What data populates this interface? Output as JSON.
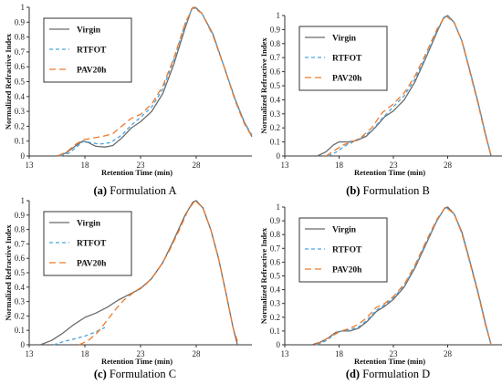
{
  "colors": {
    "virgin": "#6b6b6b",
    "rtfot": "#4aa3df",
    "pav20h": "#ec7a2b",
    "axis": "#333333"
  },
  "line_styles": {
    "virgin": "solid",
    "rtfot": "dashed",
    "pav20h": "long-dashed"
  },
  "chart_data": [
    {
      "type": "line",
      "caption_label": "(a)",
      "caption_text": " Formulation A",
      "xlabel": "Retention Time (min)",
      "ylabel": "Normalized Refractive Index",
      "xlim": [
        13,
        33
      ],
      "ylim": [
        0,
        1
      ],
      "xticks": [
        "13",
        "18",
        "23",
        "28"
      ],
      "yticks": [
        "0",
        "0.1",
        "0.2",
        "0.3",
        "0.4",
        "0.5",
        "0.6",
        "0.7",
        "0.8",
        "0.9",
        "1"
      ],
      "legend": "top-left",
      "series": [
        {
          "name": "Virgin",
          "points": [
            [
              15.5,
              0
            ],
            [
              16.3,
              0.02
            ],
            [
              17.2,
              0.07
            ],
            [
              17.8,
              0.1
            ],
            [
              18.3,
              0.09
            ],
            [
              19,
              0.065
            ],
            [
              19.8,
              0.06
            ],
            [
              20.5,
              0.07
            ],
            [
              21.3,
              0.12
            ],
            [
              22.2,
              0.19
            ],
            [
              23,
              0.23
            ],
            [
              24,
              0.3
            ],
            [
              25,
              0.42
            ],
            [
              26,
              0.62
            ],
            [
              27,
              0.86
            ],
            [
              27.6,
              0.99
            ],
            [
              27.9,
              1
            ],
            [
              28.5,
              0.96
            ],
            [
              29.5,
              0.82
            ],
            [
              30.5,
              0.6
            ],
            [
              31.5,
              0.38
            ],
            [
              32.3,
              0.23
            ],
            [
              33,
              0.13
            ]
          ]
        },
        {
          "name": "RTFOT",
          "points": [
            [
              15.8,
              0
            ],
            [
              16.6,
              0.02
            ],
            [
              17.4,
              0.07
            ],
            [
              17.9,
              0.1
            ],
            [
              18.5,
              0.09
            ],
            [
              19.3,
              0.08
            ],
            [
              20.3,
              0.09
            ],
            [
              21.3,
              0.14
            ],
            [
              22.2,
              0.21
            ],
            [
              23,
              0.26
            ],
            [
              24,
              0.33
            ],
            [
              25,
              0.45
            ],
            [
              26,
              0.65
            ],
            [
              27,
              0.89
            ],
            [
              27.7,
              1
            ],
            [
              28.5,
              0.96
            ],
            [
              29.5,
              0.82
            ],
            [
              30.5,
              0.6
            ],
            [
              31.5,
              0.38
            ],
            [
              32.3,
              0.23
            ],
            [
              33,
              0.14
            ]
          ]
        },
        {
          "name": "PAV20h",
          "points": [
            [
              15.6,
              0
            ],
            [
              16.4,
              0.03
            ],
            [
              17.2,
              0.08
            ],
            [
              17.9,
              0.11
            ],
            [
              18.7,
              0.12
            ],
            [
              19.5,
              0.13
            ],
            [
              20.5,
              0.15
            ],
            [
              21.3,
              0.2
            ],
            [
              22.1,
              0.25
            ],
            [
              23,
              0.28
            ],
            [
              24,
              0.35
            ],
            [
              25,
              0.47
            ],
            [
              26,
              0.66
            ],
            [
              27,
              0.89
            ],
            [
              27.7,
              1
            ],
            [
              28.5,
              0.96
            ],
            [
              29.5,
              0.81
            ],
            [
              30.5,
              0.6
            ],
            [
              31.5,
              0.37
            ],
            [
              32.3,
              0.22
            ],
            [
              33,
              0.13
            ]
          ]
        }
      ]
    },
    {
      "type": "line",
      "caption_label": "(b)",
      "caption_text": " Formulation B",
      "xlabel": "Retention Time (min)",
      "ylabel": "Normalized Refractive Index",
      "xlim": [
        13,
        33
      ],
      "ylim": [
        0,
        1
      ],
      "xticks": [
        "13",
        "18",
        "23",
        "28"
      ],
      "yticks": [
        "0",
        "0.1",
        "0.2",
        "0.3",
        "0.4",
        "0.5",
        "0.6",
        "0.7",
        "0.8",
        "0.9",
        "1"
      ],
      "legend": "top-left",
      "series": [
        {
          "name": "Virgin",
          "points": [
            [
              16,
              0
            ],
            [
              16.8,
              0.03
            ],
            [
              17.5,
              0.08
            ],
            [
              18,
              0.1
            ],
            [
              18.8,
              0.1
            ],
            [
              19.6,
              0.11
            ],
            [
              20.5,
              0.14
            ],
            [
              21.3,
              0.2
            ],
            [
              22.2,
              0.28
            ],
            [
              23,
              0.32
            ],
            [
              24,
              0.4
            ],
            [
              25,
              0.53
            ],
            [
              26,
              0.7
            ],
            [
              27,
              0.88
            ],
            [
              27.6,
              0.98
            ],
            [
              28,
              1
            ],
            [
              28.6,
              0.95
            ],
            [
              29.3,
              0.82
            ],
            [
              30,
              0.62
            ],
            [
              30.8,
              0.38
            ],
            [
              31.5,
              0.15
            ],
            [
              32,
              0
            ]
          ]
        },
        {
          "name": "RTFOT",
          "points": [
            [
              17,
              0
            ],
            [
              17.8,
              0.03
            ],
            [
              18.5,
              0.07
            ],
            [
              19.3,
              0.1
            ],
            [
              20,
              0.13
            ],
            [
              21,
              0.18
            ],
            [
              22,
              0.27
            ],
            [
              23,
              0.35
            ],
            [
              24,
              0.43
            ],
            [
              25,
              0.55
            ],
            [
              26,
              0.71
            ],
            [
              27,
              0.89
            ],
            [
              27.7,
              0.99
            ],
            [
              28,
              1
            ],
            [
              28.6,
              0.95
            ],
            [
              29.3,
              0.82
            ],
            [
              30,
              0.62
            ],
            [
              30.8,
              0.38
            ],
            [
              31.5,
              0.15
            ],
            [
              32,
              0
            ]
          ]
        },
        {
          "name": "PAV20h",
          "points": [
            [
              16.8,
              0
            ],
            [
              17.6,
              0.04
            ],
            [
              18.4,
              0.08
            ],
            [
              19.2,
              0.1
            ],
            [
              20,
              0.13
            ],
            [
              21,
              0.2
            ],
            [
              22,
              0.31
            ],
            [
              23,
              0.37
            ],
            [
              24,
              0.45
            ],
            [
              25,
              0.57
            ],
            [
              26,
              0.73
            ],
            [
              27,
              0.9
            ],
            [
              27.8,
              1
            ],
            [
              28.6,
              0.95
            ],
            [
              29.3,
              0.82
            ],
            [
              30,
              0.61
            ],
            [
              30.8,
              0.37
            ],
            [
              31.5,
              0.14
            ],
            [
              32,
              0
            ]
          ]
        }
      ]
    },
    {
      "type": "line",
      "caption_label": "(c)",
      "caption_text": " Formulation C",
      "xlabel": "Retention Time (min)",
      "ylabel": "Normalized Refractive Index",
      "xlim": [
        13,
        33
      ],
      "ylim": [
        0,
        1
      ],
      "xticks": [
        "13",
        "18",
        "23",
        "28"
      ],
      "yticks": [
        "0",
        "0.1",
        "0.2",
        "0.3",
        "0.4",
        "0.5",
        "0.6",
        "0.7",
        "0.8",
        "0.9",
        "1"
      ],
      "legend": "top-left",
      "series": [
        {
          "name": "Virgin",
          "points": [
            [
              14,
              0
            ],
            [
              15,
              0.03
            ],
            [
              16,
              0.08
            ],
            [
              17,
              0.14
            ],
            [
              18,
              0.19
            ],
            [
              19,
              0.22
            ],
            [
              20,
              0.26
            ],
            [
              21,
              0.31
            ],
            [
              22,
              0.35
            ],
            [
              23,
              0.39
            ],
            [
              24,
              0.46
            ],
            [
              25,
              0.57
            ],
            [
              26,
              0.73
            ],
            [
              27,
              0.9
            ],
            [
              27.7,
              0.99
            ],
            [
              28,
              1
            ],
            [
              28.6,
              0.95
            ],
            [
              29.3,
              0.8
            ],
            [
              30,
              0.6
            ],
            [
              30.7,
              0.35
            ],
            [
              31.3,
              0.12
            ],
            [
              31.7,
              0
            ]
          ]
        },
        {
          "name": "RTFOT",
          "points": [
            [
              15.2,
              0
            ],
            [
              16,
              0.02
            ],
            [
              17,
              0.04
            ],
            [
              18,
              0.06
            ],
            [
              19,
              0.09
            ],
            [
              19.8,
              0.12
            ]
          ]
        },
        {
          "name": "PAV20h",
          "points": [
            [
              17.5,
              0
            ],
            [
              18.3,
              0.03
            ],
            [
              19.2,
              0.09
            ],
            [
              20,
              0.17
            ],
            [
              20.8,
              0.25
            ],
            [
              21.5,
              0.31
            ],
            [
              22.5,
              0.37
            ],
            [
              23.5,
              0.42
            ],
            [
              24.5,
              0.51
            ],
            [
              25.5,
              0.64
            ],
            [
              26.5,
              0.8
            ],
            [
              27.3,
              0.94
            ],
            [
              27.9,
              1
            ],
            [
              28.6,
              0.95
            ],
            [
              29.3,
              0.8
            ],
            [
              30,
              0.6
            ],
            [
              30.7,
              0.35
            ],
            [
              31.3,
              0.12
            ],
            [
              31.8,
              0
            ]
          ]
        }
      ]
    },
    {
      "type": "line",
      "caption_label": "(d)",
      "caption_text": " Formulation D",
      "xlabel": "Retention Time (min)",
      "ylabel": "Normalized Refractive Index",
      "xlim": [
        13,
        33
      ],
      "ylim": [
        0,
        1
      ],
      "xticks": [
        "13",
        "18",
        "23",
        "28"
      ],
      "yticks": [
        "0",
        "0.1",
        "0.2",
        "0.3",
        "0.4",
        "0.5",
        "0.6",
        "0.7",
        "0.8",
        "0.9",
        "1"
      ],
      "legend": "top-left",
      "series": [
        {
          "name": "Virgin",
          "points": [
            [
              15.5,
              0
            ],
            [
              16.3,
              0.02
            ],
            [
              17,
              0.05
            ],
            [
              17.7,
              0.09
            ],
            [
              18.3,
              0.1
            ],
            [
              19,
              0.1
            ],
            [
              19.8,
              0.12
            ],
            [
              20.6,
              0.17
            ],
            [
              21.4,
              0.24
            ],
            [
              22.2,
              0.28
            ],
            [
              23,
              0.33
            ],
            [
              24,
              0.42
            ],
            [
              25,
              0.56
            ],
            [
              26,
              0.73
            ],
            [
              27,
              0.9
            ],
            [
              27.7,
              0.99
            ],
            [
              28,
              1
            ],
            [
              28.6,
              0.95
            ],
            [
              29.3,
              0.82
            ],
            [
              30,
              0.62
            ],
            [
              30.8,
              0.38
            ],
            [
              31.5,
              0.15
            ],
            [
              32,
              0
            ]
          ]
        },
        {
          "name": "RTFOT",
          "points": [
            [
              16,
              0
            ],
            [
              16.8,
              0.03
            ],
            [
              17.5,
              0.07
            ],
            [
              18.2,
              0.1
            ],
            [
              19,
              0.11
            ],
            [
              19.8,
              0.13
            ],
            [
              20.6,
              0.18
            ],
            [
              21.4,
              0.25
            ],
            [
              22.2,
              0.29
            ],
            [
              23,
              0.34
            ],
            [
              24,
              0.43
            ],
            [
              25,
              0.57
            ],
            [
              26,
              0.74
            ],
            [
              27,
              0.9
            ],
            [
              27.8,
              1
            ],
            [
              28.6,
              0.95
            ],
            [
              29.3,
              0.81
            ],
            [
              30,
              0.61
            ],
            [
              30.8,
              0.37
            ],
            [
              31.5,
              0.14
            ],
            [
              32,
              0
            ]
          ]
        },
        {
          "name": "PAV20h",
          "points": [
            [
              15.8,
              0
            ],
            [
              16.6,
              0.03
            ],
            [
              17.4,
              0.07
            ],
            [
              18.2,
              0.1
            ],
            [
              19,
              0.12
            ],
            [
              19.8,
              0.15
            ],
            [
              20.6,
              0.2
            ],
            [
              21.4,
              0.27
            ],
            [
              22.2,
              0.3
            ],
            [
              23,
              0.35
            ],
            [
              24,
              0.44
            ],
            [
              25,
              0.58
            ],
            [
              26,
              0.75
            ],
            [
              27,
              0.91
            ],
            [
              27.8,
              1
            ],
            [
              28.6,
              0.95
            ],
            [
              29.3,
              0.81
            ],
            [
              30,
              0.61
            ],
            [
              30.8,
              0.37
            ],
            [
              31.5,
              0.14
            ],
            [
              32,
              0
            ]
          ]
        }
      ]
    }
  ]
}
